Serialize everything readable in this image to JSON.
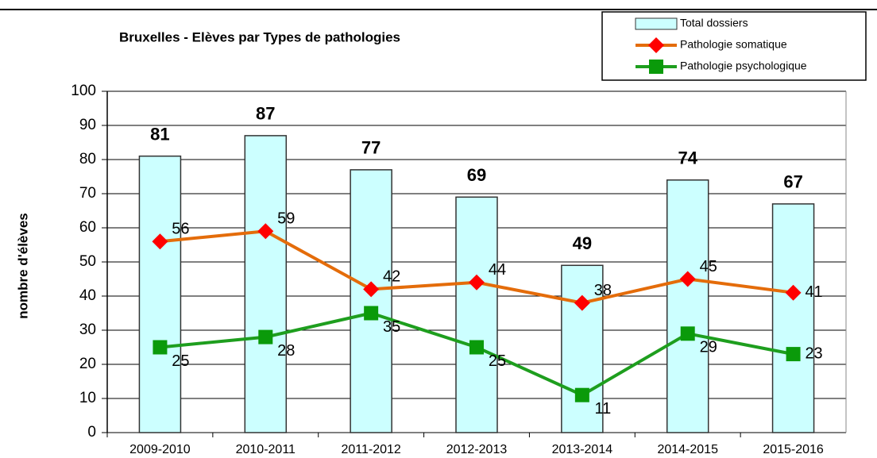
{
  "chart_data": {
    "type": "bar_line",
    "title": "Bruxelles - Elèves par Types de pathologies",
    "y_label": "nombre d'élèves",
    "categories": [
      "2009-2010",
      "2010-2011",
      "2011-2012",
      "2012-2013",
      "2013-2014",
      "2014-2015",
      "2015-2016"
    ],
    "series": [
      {
        "name": "Total dossiers",
        "type": "bar",
        "color": "#ccffff",
        "values": [
          81,
          87,
          77,
          69,
          49,
          74,
          67
        ]
      },
      {
        "name": "Pathologie somatique",
        "type": "line",
        "color": "#e46c0a",
        "marker_color": "#ff0000",
        "marker": "diamond",
        "values": [
          56,
          59,
          42,
          44,
          38,
          45,
          41
        ]
      },
      {
        "name": "Pathologie psychologique",
        "type": "line",
        "color": "#1e9e1e",
        "marker_color": "#0a9a0a",
        "marker": "square",
        "values": [
          25,
          28,
          35,
          25,
          11,
          29,
          23
        ]
      }
    ],
    "ylim": [
      0,
      100
    ],
    "yticks": [
      0,
      10,
      20,
      30,
      40,
      50,
      60,
      70,
      80,
      90,
      100
    ],
    "grid": true,
    "legend": "top-right"
  }
}
